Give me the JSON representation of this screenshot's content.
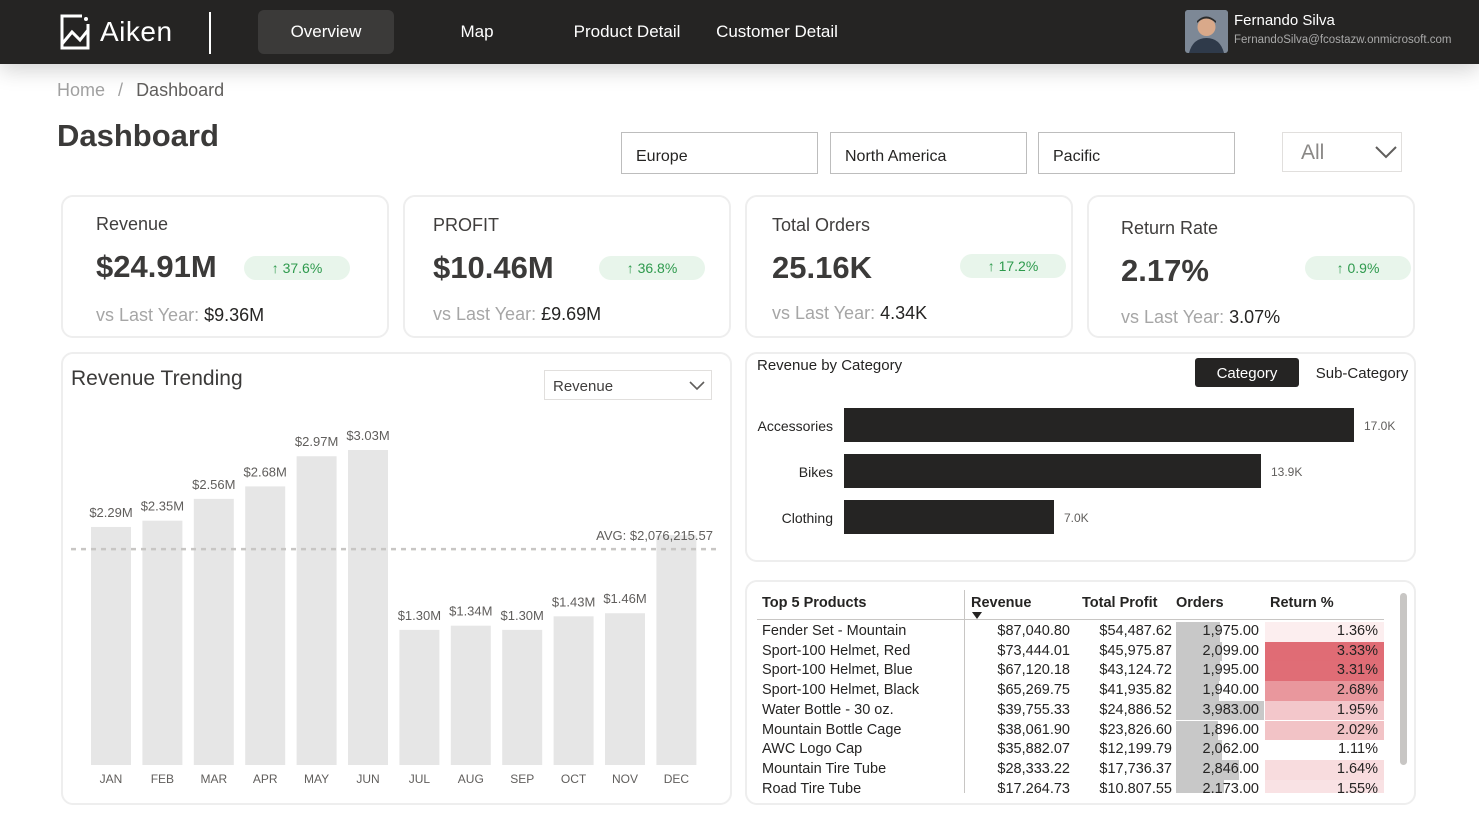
{
  "app": {
    "logo_text": "Aiken"
  },
  "nav": {
    "items": [
      {
        "label": "Overview",
        "active": true
      },
      {
        "label": "Map",
        "active": false
      },
      {
        "label": "Product Detail",
        "active": false
      },
      {
        "label": "Customer Detail",
        "active": false
      }
    ]
  },
  "user": {
    "name": "Fernando Silva",
    "email": "FernandoSilva@fcostazw.onmicrosoft.com"
  },
  "breadcrumb": {
    "home": "Home",
    "separator": "/",
    "current": "Dashboard"
  },
  "page": {
    "title": "Dashboard"
  },
  "filters": {
    "regions": [
      "Europe",
      "North America",
      "Pacific"
    ],
    "dropdown_value": "All"
  },
  "kpis": [
    {
      "label": "Revenue",
      "value": "$24.91M",
      "change": "37.6%",
      "vs_label": "vs Last Year:",
      "vs_value": "$9.36M"
    },
    {
      "label": "PROFIT",
      "value": "$10.46M",
      "change": "36.8%",
      "vs_label": "vs Last Year:",
      "vs_value": "£9.69M"
    },
    {
      "label": "Total Orders",
      "value": "25.16K",
      "change": "17.2%",
      "vs_label": "vs Last Year:",
      "vs_value": "4.34K"
    },
    {
      "label": "Return Rate",
      "value": "2.17%",
      "change": "0.9%",
      "vs_label": "vs Last Year:",
      "vs_value": "3.07%"
    }
  ],
  "trend": {
    "title": "Revenue Trending",
    "metric_value": "Revenue",
    "avg_label": "AVG: $2,076,215.57",
    "avg_value": 2.076
  },
  "category": {
    "title": "Revenue by Category",
    "toggle_active": "Category",
    "toggle_inactive": "Sub-Category"
  },
  "colors": {
    "bar_light": "#e6e6e6",
    "bar_dark": "#252423",
    "accent_green": "#2e9a4d",
    "return_high": "#e06c75"
  },
  "chart_data": [
    {
      "type": "bar",
      "title": "Revenue Trending",
      "categories": [
        "JAN",
        "FEB",
        "MAR",
        "APR",
        "MAY",
        "JUN",
        "JUL",
        "AUG",
        "SEP",
        "OCT",
        "NOV",
        "DEC"
      ],
      "values": [
        2.29,
        2.35,
        2.56,
        2.68,
        2.97,
        3.03,
        1.3,
        1.34,
        1.3,
        1.43,
        1.46,
        2.21
      ],
      "data_labels": [
        "$2.29M",
        "$2.35M",
        "$2.56M",
        "$2.68M",
        "$2.97M",
        "$3.03M",
        "$1.30M",
        "$1.34M",
        "$1.30M",
        "$1.43M",
        "$1.46M",
        ""
      ],
      "unit": "$M",
      "ylim": [
        0,
        3.03
      ]
    },
    {
      "type": "bar",
      "orientation": "horizontal",
      "title": "Revenue by Category",
      "categories": [
        "Accessories",
        "Bikes",
        "Clothing"
      ],
      "values": [
        17.0,
        13.9,
        7.0
      ],
      "data_labels": [
        "17.0K",
        "13.9K",
        "7.0K"
      ],
      "xlim": [
        0,
        17.0
      ]
    }
  ],
  "table": {
    "headers": [
      "Top 5 Products",
      "Revenue",
      "Total Profit",
      "Orders",
      "Return %"
    ],
    "rows": [
      {
        "product": "Fender Set - Mountain",
        "revenue": "$87,040.80",
        "profit": "$54,487.62",
        "orders": "1,975.00",
        "orders_value": 1975,
        "return": "1.36%",
        "return_value": 1.36
      },
      {
        "product": "Sport-100 Helmet, Red",
        "revenue": "$73,444.01",
        "profit": "$45,975.87",
        "orders": "2,099.00",
        "orders_value": 2099,
        "return": "3.33%",
        "return_value": 3.33
      },
      {
        "product": "Sport-100 Helmet, Blue",
        "revenue": "$67,120.18",
        "profit": "$43,124.72",
        "orders": "1,995.00",
        "orders_value": 1995,
        "return": "3.31%",
        "return_value": 3.31
      },
      {
        "product": "Sport-100 Helmet, Black",
        "revenue": "$65,269.75",
        "profit": "$41,935.82",
        "orders": "1,940.00",
        "orders_value": 1940,
        "return": "2.68%",
        "return_value": 2.68
      },
      {
        "product": "Water Bottle - 30 oz.",
        "revenue": "$39,755.33",
        "profit": "$24,886.52",
        "orders": "3,983.00",
        "orders_value": 3983,
        "return": "1.95%",
        "return_value": 1.95
      },
      {
        "product": "Mountain Bottle Cage",
        "revenue": "$38,061.90",
        "profit": "$23,826.60",
        "orders": "1,896.00",
        "orders_value": 1896,
        "return": "2.02%",
        "return_value": 2.02
      },
      {
        "product": "AWC Logo Cap",
        "revenue": "$35,882.07",
        "profit": "$12,199.79",
        "orders": "2,062.00",
        "orders_value": 2062,
        "return": "1.11%",
        "return_value": 1.11
      },
      {
        "product": "Mountain Tire Tube",
        "revenue": "$28,333.22",
        "profit": "$17,736.37",
        "orders": "2,846.00",
        "orders_value": 2846,
        "return": "1.64%",
        "return_value": 1.64
      },
      {
        "product": "Road Tire Tube",
        "revenue": "$17,264.73",
        "profit": "$10,807.55",
        "orders": "2,173.00",
        "orders_value": 2173,
        "return": "1.55%",
        "return_value": 1.55
      }
    ]
  }
}
